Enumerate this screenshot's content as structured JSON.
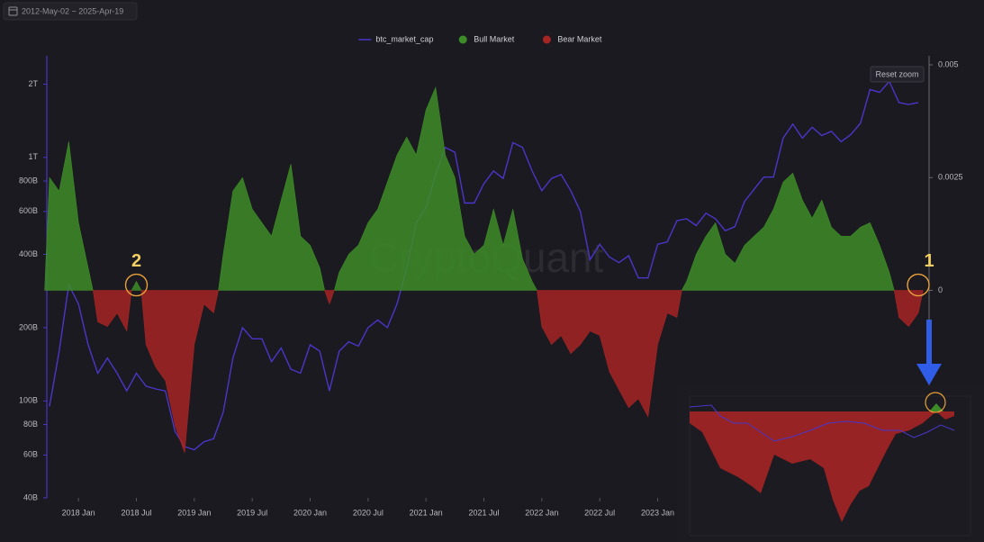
{
  "chart_data": {
    "type": "line",
    "date_range": "2012-May-02 ~ 2025-Apr-19",
    "reset_zoom": "Reset zoom",
    "watermark": "CryptoQuant",
    "legend": "top",
    "grid": false,
    "ylog": true,
    "x": [
      "2017-10",
      "2017-11",
      "2017-12",
      "2018-01",
      "2018-02",
      "2018-03",
      "2018-04",
      "2018-05",
      "2018-06",
      "2018-07",
      "2018-08",
      "2018-09",
      "2018-10",
      "2018-11",
      "2018-12",
      "2019-01",
      "2019-02",
      "2019-03",
      "2019-04",
      "2019-05",
      "2019-06",
      "2019-07",
      "2019-08",
      "2019-09",
      "2019-10",
      "2019-11",
      "2019-12",
      "2020-01",
      "2020-02",
      "2020-03",
      "2020-04",
      "2020-05",
      "2020-06",
      "2020-07",
      "2020-08",
      "2020-09",
      "2020-10",
      "2020-11",
      "2020-12",
      "2021-01",
      "2021-02",
      "2021-03",
      "2021-04",
      "2021-05",
      "2021-06",
      "2021-07",
      "2021-08",
      "2021-09",
      "2021-10",
      "2021-11",
      "2021-12",
      "2022-01",
      "2022-02",
      "2022-03",
      "2022-04",
      "2022-05",
      "2022-06",
      "2022-07",
      "2022-08",
      "2022-09",
      "2022-10",
      "2022-11",
      "2022-12",
      "2023-01",
      "2023-02",
      "2023-03",
      "2023-04",
      "2023-05",
      "2023-06",
      "2023-07",
      "2023-08",
      "2023-09",
      "2023-10",
      "2023-11",
      "2023-12",
      "2024-01",
      "2024-02",
      "2024-03",
      "2024-04",
      "2024-05",
      "2024-06",
      "2024-07",
      "2024-08",
      "2024-09",
      "2024-10",
      "2024-11",
      "2024-12",
      "2025-01",
      "2025-02",
      "2025-03",
      "2025-04"
    ],
    "xlim": [
      "2017-10",
      "2025-04"
    ],
    "xticks": [
      {
        "value": "2018-01",
        "label": "2018 Jan"
      },
      {
        "value": "2018-07",
        "label": "2018 Jul"
      },
      {
        "value": "2019-01",
        "label": "2019 Jan"
      },
      {
        "value": "2019-07",
        "label": "2019 Jul"
      },
      {
        "value": "2020-01",
        "label": "2020 Jan"
      },
      {
        "value": "2020-07",
        "label": "2020 Jul"
      },
      {
        "value": "2021-01",
        "label": "2021 Jan"
      },
      {
        "value": "2021-07",
        "label": "2021 Jul"
      },
      {
        "value": "2022-01",
        "label": "2022 Jan"
      },
      {
        "value": "2022-07",
        "label": "2022 Jul"
      },
      {
        "value": "2023-01",
        "label": "2023 Jan"
      }
    ],
    "ylim": [
      40,
      2400
    ],
    "yticks": [
      {
        "value": 40,
        "label": "40B"
      },
      {
        "value": 60,
        "label": "60B"
      },
      {
        "value": 80,
        "label": "80B"
      },
      {
        "value": 100,
        "label": "100B"
      },
      {
        "value": 200,
        "label": "200B"
      },
      {
        "value": 400,
        "label": "400B"
      },
      {
        "value": 600,
        "label": "600B"
      },
      {
        "value": 800,
        "label": "800B"
      },
      {
        "value": 1000,
        "label": "1T"
      },
      {
        "value": 2000,
        "label": "2T"
      }
    ],
    "y2lim": [
      -0.0046,
      0.005
    ],
    "y2ticks": [
      0,
      0.0025,
      0.005
    ],
    "series": [
      {
        "name": "btc_market_cap",
        "type": "line",
        "color": "#4a36c8",
        "values": [
          95,
          160,
          300,
          250,
          170,
          130,
          150,
          130,
          110,
          130,
          115,
          112,
          110,
          75,
          65,
          63,
          68,
          70,
          90,
          150,
          200,
          180,
          180,
          145,
          165,
          135,
          130,
          170,
          160,
          110,
          160,
          175,
          168,
          200,
          215,
          200,
          250,
          350,
          540,
          620,
          850,
          1100,
          1050,
          650,
          650,
          780,
          880,
          820,
          1150,
          1100,
          880,
          730,
          820,
          850,
          730,
          600,
          380,
          440,
          390,
          370,
          395,
          320,
          320,
          440,
          450,
          550,
          560,
          525,
          590,
          560,
          500,
          520,
          660,
          740,
          830,
          830,
          1200,
          1370,
          1200,
          1330,
          1230,
          1280,
          1160,
          1240,
          1380,
          1900,
          1850,
          2050,
          1680,
          1650,
          1680
        ]
      },
      {
        "name": "Bull Market",
        "type": "area",
        "axis": "y2",
        "color": "#3d8c28",
        "values": [
          0.0025,
          0.0022,
          0.0033,
          0.0015,
          0.0005,
          null,
          null,
          null,
          null,
          0.0002,
          null,
          null,
          null,
          null,
          null,
          null,
          null,
          null,
          0.0008,
          0.0022,
          0.0025,
          0.0018,
          0.0015,
          0.0012,
          0.002,
          0.0028,
          0.0012,
          0.001,
          0.0005,
          null,
          0.0004,
          0.0008,
          0.001,
          0.0015,
          0.0018,
          0.0024,
          0.003,
          0.0034,
          0.003,
          0.004,
          0.0045,
          0.003,
          0.0025,
          0.0012,
          0.0008,
          0.001,
          0.0018,
          0.001,
          0.0018,
          0.0007,
          0.0002,
          null,
          null,
          null,
          null,
          null,
          null,
          null,
          null,
          null,
          null,
          null,
          null,
          null,
          null,
          null,
          0.0002,
          0.0008,
          0.0012,
          0.0015,
          0.0008,
          0.0006,
          0.001,
          0.0012,
          0.0014,
          0.0018,
          0.0024,
          0.0026,
          0.002,
          0.0016,
          0.002,
          0.0014,
          0.0012,
          0.0012,
          0.0014,
          0.0015,
          0.001,
          0.0004,
          null,
          null,
          null
        ]
      },
      {
        "name": "Bear Market",
        "type": "area",
        "axis": "y2",
        "color": "#a52525",
        "values": [
          null,
          null,
          null,
          null,
          null,
          -0.0007,
          -0.0008,
          -0.0005,
          -0.0009,
          null,
          -0.0012,
          -0.0017,
          -0.002,
          -0.003,
          -0.0036,
          -0.0012,
          -0.0003,
          -0.0005,
          null,
          null,
          null,
          null,
          null,
          null,
          null,
          null,
          null,
          null,
          null,
          -0.0003,
          null,
          null,
          null,
          null,
          null,
          null,
          null,
          null,
          null,
          null,
          null,
          null,
          null,
          null,
          null,
          null,
          null,
          null,
          null,
          null,
          null,
          -0.0008,
          -0.0012,
          -0.001,
          -0.0014,
          -0.0012,
          -0.0009,
          -0.001,
          -0.0018,
          -0.0022,
          -0.0026,
          -0.0024,
          -0.0028,
          -0.0012,
          -0.0005,
          -0.0006,
          null,
          null,
          null,
          null,
          null,
          null,
          null,
          null,
          null,
          null,
          null,
          null,
          null,
          null,
          null,
          null,
          null,
          null,
          null,
          null,
          null,
          null,
          -0.0006,
          -0.0008,
          -0.0005
        ]
      }
    ],
    "annotations": [
      {
        "text": "2",
        "x": "2018-07"
      },
      {
        "text": "1",
        "x": "2025-04"
      }
    ]
  }
}
